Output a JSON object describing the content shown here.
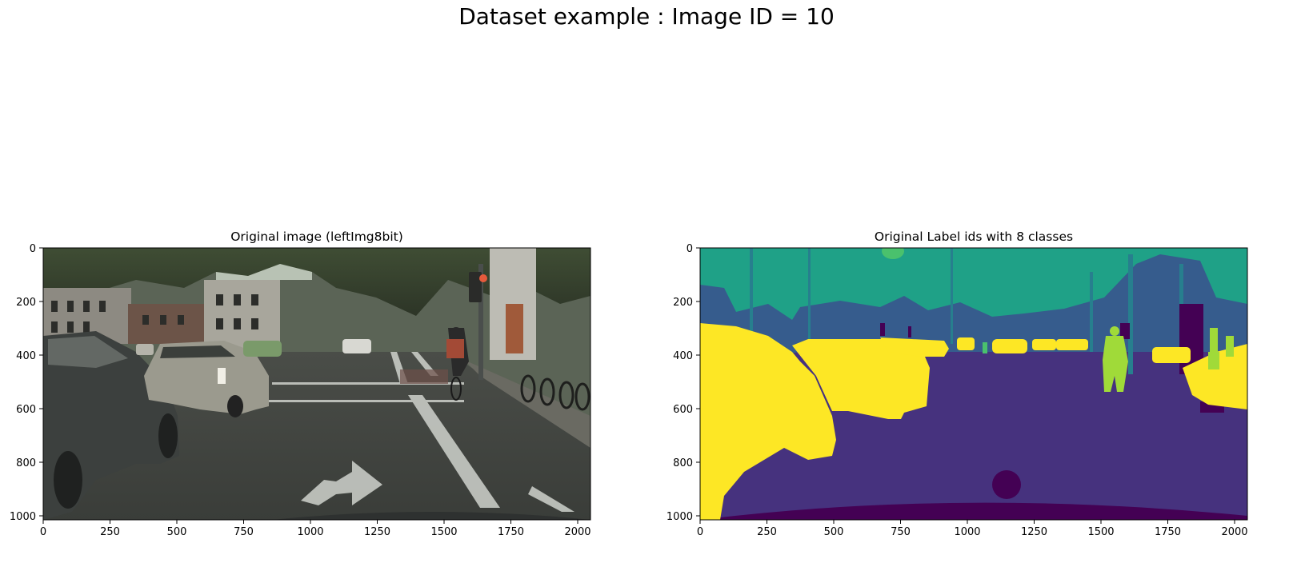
{
  "figure": {
    "suptitle": "Dataset example : Image ID = 10"
  },
  "panels": [
    {
      "title": "Original image (leftImg8bit)",
      "x_ticks": [
        "0",
        "250",
        "500",
        "750",
        "1000",
        "1250",
        "1500",
        "1750",
        "2000"
      ],
      "y_ticks": [
        "0",
        "200",
        "400",
        "600",
        "800",
        "1000"
      ]
    },
    {
      "title": "Original Label ids with 8 classes",
      "x_ticks": [
        "0",
        "250",
        "500",
        "750",
        "1000",
        "1250",
        "1500",
        "1750",
        "2000"
      ],
      "y_ticks": [
        "0",
        "200",
        "400",
        "600",
        "800",
        "1000"
      ]
    }
  ],
  "colors": {
    "label_void": "#440154",
    "label_flat": "#46327e",
    "label_construction": "#365c8d",
    "label_object": "#277f8e",
    "label_nature": "#1fa187",
    "label_sky": "#4ac16d",
    "label_human": "#a0da39",
    "label_vehicle": "#fde725"
  }
}
